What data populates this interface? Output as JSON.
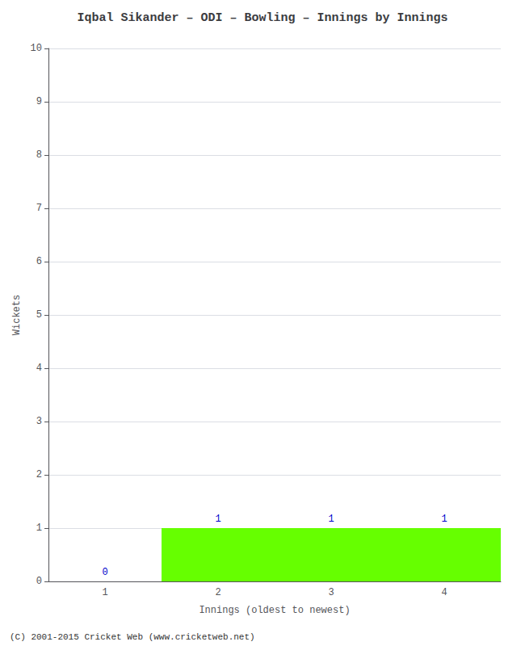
{
  "chart_data": {
    "type": "bar",
    "title": "Iqbal Sikander – ODI – Bowling – Innings by Innings",
    "xlabel": "Innings (oldest to newest)",
    "ylabel": "Wickets",
    "categories": [
      1,
      2,
      3,
      4
    ],
    "values": [
      0,
      1,
      1,
      1
    ],
    "color": "#66ff00",
    "ylim": [
      0,
      10
    ],
    "yticks": [
      0,
      1,
      2,
      3,
      4,
      5,
      6,
      7,
      8,
      9,
      10
    ],
    "grid": true,
    "data_labels": true,
    "annotations": [
      "(C) 2001-2015 Cricket Web (www.cricketweb.net)"
    ]
  }
}
